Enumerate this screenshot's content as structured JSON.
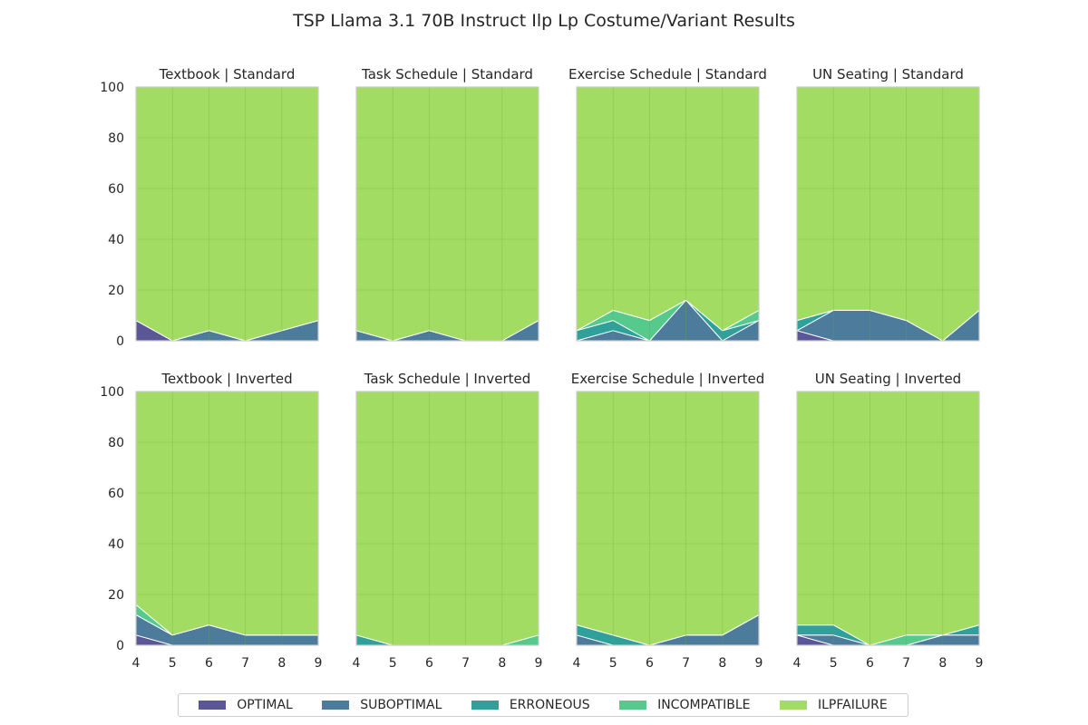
{
  "chart_data": {
    "type": "area",
    "title": "TSP Llama 3.1 70B Instruct Ilp Lp Costume/Variant Results",
    "x": [
      4,
      5,
      6,
      7,
      8,
      9
    ],
    "ylim": [
      0,
      100
    ],
    "xlim": [
      4,
      9
    ],
    "yticks": [
      0,
      20,
      40,
      60,
      80,
      100
    ],
    "grid": true,
    "stacked": true,
    "legend_position": "bottom",
    "series_names": [
      "OPTIMAL",
      "SUBOPTIMAL",
      "ERRONEOUS",
      "INCOMPATIBLE",
      "ILPFAILURE"
    ],
    "colors": {
      "OPTIMAL": "#5b5797",
      "SUBOPTIMAL": "#4c7b9b",
      "ERRONEOUS": "#2fa09a",
      "INCOMPATIBLE": "#56c98c",
      "ILPFAILURE": "#a2dc62"
    },
    "panels": [
      {
        "title": "Textbook | Standard",
        "series": {
          "OPTIMAL": [
            8,
            0,
            0,
            0,
            0,
            0
          ],
          "SUBOPTIMAL": [
            0,
            0,
            4,
            0,
            4,
            8
          ],
          "ERRONEOUS": [
            0,
            0,
            0,
            0,
            0,
            0
          ],
          "INCOMPATIBLE": [
            0,
            0,
            0,
            0,
            0,
            0
          ],
          "ILPFAILURE": [
            92,
            100,
            96,
            100,
            96,
            92
          ]
        }
      },
      {
        "title": "Task Schedule | Standard",
        "series": {
          "OPTIMAL": [
            0,
            0,
            0,
            0,
            0,
            0
          ],
          "SUBOPTIMAL": [
            4,
            0,
            4,
            0,
            0,
            8
          ],
          "ERRONEOUS": [
            0,
            0,
            0,
            0,
            0,
            0
          ],
          "INCOMPATIBLE": [
            0,
            0,
            0,
            0,
            0,
            0
          ],
          "ILPFAILURE": [
            96,
            100,
            96,
            100,
            100,
            92
          ]
        }
      },
      {
        "title": "Exercise Schedule | Standard",
        "series": {
          "OPTIMAL": [
            0,
            0,
            0,
            0,
            0,
            0
          ],
          "SUBOPTIMAL": [
            0,
            4,
            0,
            16,
            0,
            8
          ],
          "ERRONEOUS": [
            4,
            4,
            0,
            0,
            4,
            0
          ],
          "INCOMPATIBLE": [
            0,
            4,
            8,
            0,
            0,
            4
          ],
          "ILPFAILURE": [
            96,
            88,
            92,
            84,
            96,
            88
          ]
        }
      },
      {
        "title": "UN Seating | Standard",
        "series": {
          "OPTIMAL": [
            4,
            0,
            0,
            0,
            0,
            0
          ],
          "SUBOPTIMAL": [
            0,
            12,
            12,
            8,
            0,
            12
          ],
          "ERRONEOUS": [
            4,
            0,
            0,
            0,
            0,
            0
          ],
          "INCOMPATIBLE": [
            0,
            0,
            0,
            0,
            0,
            0
          ],
          "ILPFAILURE": [
            92,
            88,
            88,
            92,
            100,
            88
          ]
        }
      },
      {
        "title": "Textbook | Inverted",
        "series": {
          "OPTIMAL": [
            4,
            0,
            0,
            0,
            0,
            0
          ],
          "SUBOPTIMAL": [
            8,
            4,
            8,
            4,
            4,
            4
          ],
          "ERRONEOUS": [
            0,
            0,
            0,
            0,
            0,
            0
          ],
          "INCOMPATIBLE": [
            4,
            0,
            0,
            0,
            0,
            0
          ],
          "ILPFAILURE": [
            84,
            96,
            92,
            96,
            96,
            96
          ]
        }
      },
      {
        "title": "Task Schedule | Inverted",
        "series": {
          "OPTIMAL": [
            0,
            0,
            0,
            0,
            0,
            0
          ],
          "SUBOPTIMAL": [
            0,
            0,
            0,
            0,
            0,
            0
          ],
          "ERRONEOUS": [
            4,
            0,
            0,
            0,
            0,
            0
          ],
          "INCOMPATIBLE": [
            0,
            0,
            0,
            0,
            0,
            4
          ],
          "ILPFAILURE": [
            96,
            100,
            100,
            100,
            100,
            96
          ]
        }
      },
      {
        "title": "Exercise Schedule | Inverted",
        "series": {
          "OPTIMAL": [
            0,
            0,
            0,
            0,
            0,
            0
          ],
          "SUBOPTIMAL": [
            4,
            0,
            0,
            4,
            4,
            12
          ],
          "ERRONEOUS": [
            4,
            4,
            0,
            0,
            0,
            0
          ],
          "INCOMPATIBLE": [
            0,
            0,
            0,
            0,
            0,
            0
          ],
          "ILPFAILURE": [
            92,
            96,
            100,
            96,
            96,
            88
          ]
        }
      },
      {
        "title": "UN Seating | Inverted",
        "series": {
          "OPTIMAL": [
            4,
            0,
            0,
            0,
            0,
            0
          ],
          "SUBOPTIMAL": [
            0,
            4,
            0,
            0,
            4,
            4
          ],
          "ERRONEOUS": [
            4,
            4,
            0,
            0,
            0,
            4
          ],
          "INCOMPATIBLE": [
            0,
            0,
            0,
            4,
            0,
            0
          ],
          "ILPFAILURE": [
            92,
            92,
            100,
            96,
            96,
            92
          ]
        }
      }
    ]
  }
}
